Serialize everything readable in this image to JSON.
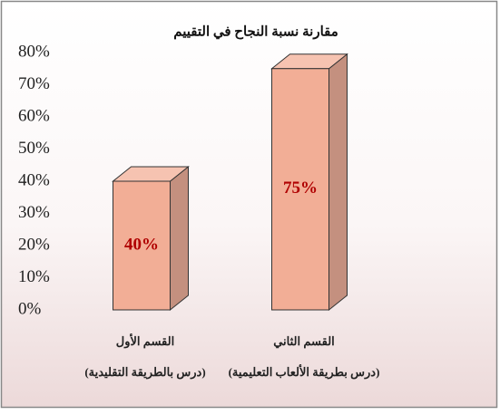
{
  "chart_data": {
    "type": "bar3d",
    "title": "مقارنة نسبة النجاح في التقييم",
    "categories": [
      "القسم الأول",
      "القسم الثاني"
    ],
    "category_notes": [
      "(درس بالطريقة التقليدية)",
      "(درس بطريقة الألعاب التعليمية)"
    ],
    "values": [
      40,
      75
    ],
    "value_labels": [
      "40%",
      "75%"
    ],
    "color": "#f2ae96",
    "ylim": [
      0,
      80
    ],
    "yticks": [
      {
        "value": 0,
        "label": "0%"
      },
      {
        "value": 10,
        "label": "10%"
      },
      {
        "value": 20,
        "label": "20%"
      },
      {
        "value": 30,
        "label": "30%"
      },
      {
        "value": 40,
        "label": "40%"
      },
      {
        "value": 50,
        "label": "50%"
      },
      {
        "value": 60,
        "label": "60%"
      },
      {
        "value": 70,
        "label": "70%"
      },
      {
        "value": 80,
        "label": "80%"
      }
    ],
    "grid": false
  }
}
